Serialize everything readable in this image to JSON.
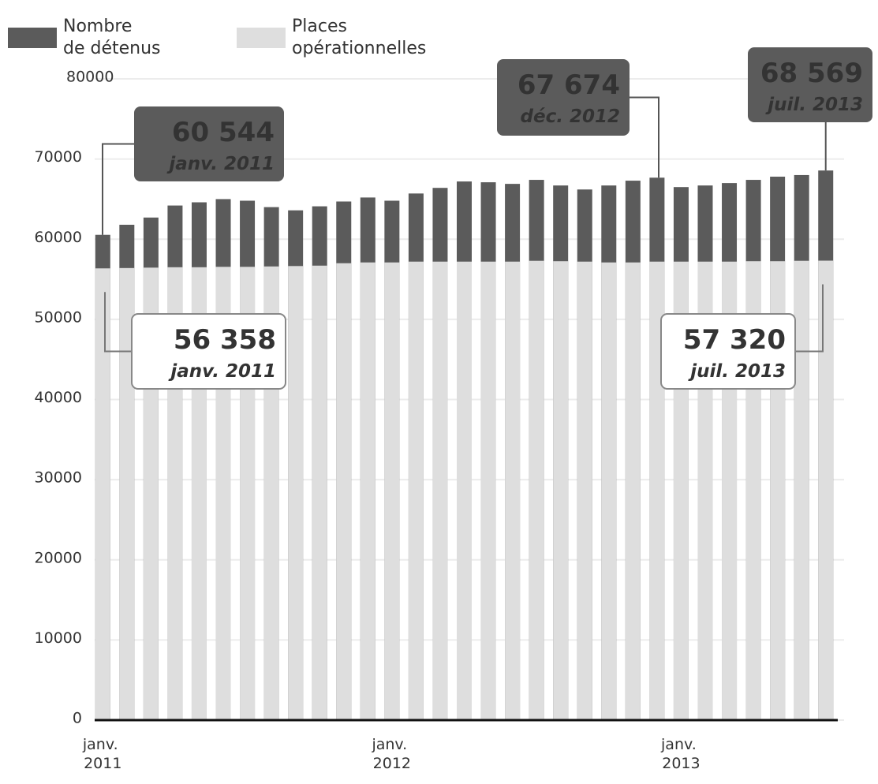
{
  "chart_data": {
    "type": "bar",
    "categories": [
      "janv. 2011",
      null,
      null,
      null,
      null,
      null,
      null,
      null,
      null,
      null,
      null,
      null,
      "janv. 2012",
      null,
      null,
      null,
      null,
      null,
      null,
      null,
      null,
      null,
      null,
      null,
      "janv. 2013",
      null,
      null,
      null,
      null,
      null,
      null
    ],
    "series": [
      {
        "name": "Nombre de détenus",
        "color": "#5b5b5b",
        "values": [
          60544,
          61800,
          62700,
          64200,
          64600,
          65000,
          64800,
          64000,
          63600,
          64100,
          64700,
          65200,
          64800,
          65700,
          66400,
          67200,
          67100,
          66900,
          67400,
          66700,
          66200,
          66700,
          67300,
          67674,
          66500,
          66700,
          67000,
          67400,
          67800,
          68000,
          68569
        ],
        "value_labels": [
          "60 544",
          null,
          null,
          null,
          null,
          null,
          null,
          null,
          null,
          null,
          null,
          null,
          null,
          null,
          null,
          null,
          null,
          null,
          null,
          null,
          null,
          null,
          null,
          "67 674",
          null,
          null,
          null,
          null,
          null,
          null,
          "68 569"
        ],
        "date_labels": [
          "janv. 2011",
          null,
          null,
          null,
          null,
          null,
          null,
          null,
          null,
          null,
          null,
          null,
          null,
          null,
          null,
          null,
          null,
          null,
          null,
          null,
          null,
          null,
          null,
          "déc. 2012",
          null,
          null,
          null,
          null,
          null,
          null,
          "juil. 2013"
        ]
      },
      {
        "name": "Places opérationnelles",
        "color": "#dedede",
        "values": [
          56358,
          56400,
          56450,
          56500,
          56500,
          56550,
          56550,
          56600,
          56650,
          56700,
          57000,
          57100,
          57100,
          57200,
          57200,
          57200,
          57200,
          57200,
          57300,
          57250,
          57200,
          57100,
          57100,
          57200,
          57200,
          57200,
          57200,
          57250,
          57250,
          57300,
          57320
        ],
        "value_labels": [
          "56 358",
          null,
          null,
          null,
          null,
          null,
          null,
          null,
          null,
          null,
          null,
          null,
          null,
          null,
          null,
          null,
          null,
          null,
          null,
          null,
          null,
          null,
          null,
          null,
          null,
          null,
          null,
          null,
          null,
          null,
          "57 320"
        ],
        "date_labels": [
          "janv. 2011",
          null,
          null,
          null,
          null,
          null,
          null,
          null,
          null,
          null,
          null,
          null,
          null,
          null,
          null,
          null,
          null,
          null,
          null,
          null,
          null,
          null,
          null,
          null,
          null,
          null,
          null,
          null,
          null,
          null,
          "juil. 2013"
        ]
      }
    ],
    "ylim": [
      0,
      80000
    ],
    "yticks": [
      0,
      10000,
      20000,
      30000,
      40000,
      50000,
      60000,
      70000,
      80000
    ],
    "grid": true
  }
}
